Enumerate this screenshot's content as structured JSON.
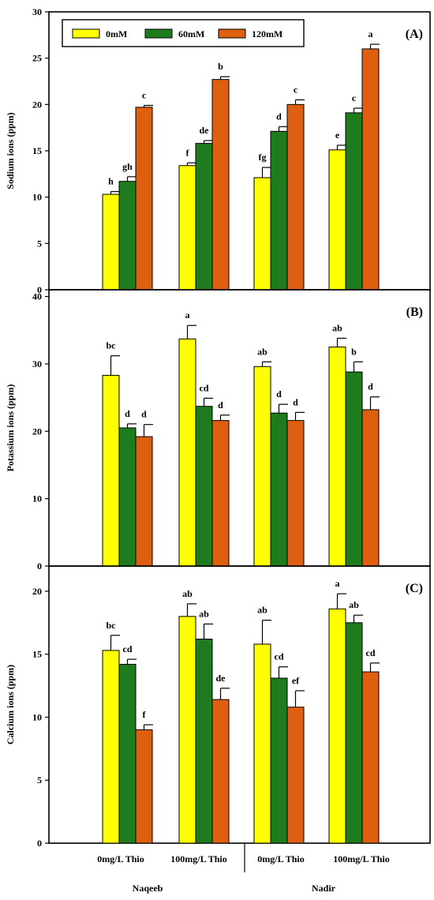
{
  "legend": [
    {
      "label": "0mM",
      "color": "#ffff00"
    },
    {
      "label": "60mM",
      "color": "#1e7b1e"
    },
    {
      "label": "120mM",
      "color": "#dd5f0f"
    }
  ],
  "x_groups": [
    "0mg/L Thio",
    "100mg/L Thio",
    "0mg/L Thio",
    "100mg/L Thio"
  ],
  "cultivars": [
    "Naqeeb",
    "Nadir"
  ],
  "chart_data": [
    {
      "type": "bar",
      "panel_label": "(A)",
      "ylabel": "Sodium ions (ppm)",
      "ylim": [
        0,
        30
      ],
      "yticks": [
        0,
        5,
        10,
        15,
        20,
        25,
        30
      ],
      "categories": [
        "0mg/L Thio",
        "100mg/L Thio",
        "0mg/L Thio",
        "100mg/L Thio"
      ],
      "series": [
        {
          "name": "0mM",
          "values": [
            10.3,
            13.4,
            12.1,
            15.1
          ],
          "errors": [
            0.3,
            0.3,
            1.1,
            0.5
          ],
          "labels": [
            "h",
            "f",
            "fg",
            "e"
          ]
        },
        {
          "name": "60mM",
          "values": [
            11.7,
            15.8,
            17.1,
            19.1
          ],
          "errors": [
            0.5,
            0.3,
            0.5,
            0.5
          ],
          "labels": [
            "gh",
            "de",
            "d",
            "c"
          ]
        },
        {
          "name": "120mM",
          "values": [
            19.7,
            22.7,
            20.0,
            26.0
          ],
          "errors": [
            0.2,
            0.3,
            0.5,
            0.5
          ],
          "labels": [
            "c",
            "b",
            "c",
            "a"
          ]
        }
      ],
      "legend_position": "top-left"
    },
    {
      "type": "bar",
      "panel_label": "(B)",
      "ylabel": "Potassium ions (ppm)",
      "ylim": [
        0,
        41
      ],
      "yticks": [
        0,
        10,
        20,
        30,
        40
      ],
      "categories": [
        "0mg/L Thio",
        "100mg/L Thio",
        "0mg/L Thio",
        "100mg/L Thio"
      ],
      "series": [
        {
          "name": "0mM",
          "values": [
            28.3,
            33.7,
            29.6,
            32.5
          ],
          "errors": [
            2.9,
            2.0,
            0.7,
            1.3
          ],
          "labels": [
            "bc",
            "a",
            "ab",
            "ab"
          ]
        },
        {
          "name": "60mM",
          "values": [
            20.5,
            23.7,
            22.7,
            28.8
          ],
          "errors": [
            0.6,
            1.2,
            1.3,
            1.5
          ],
          "labels": [
            "d",
            "cd",
            "d",
            "b"
          ]
        },
        {
          "name": "120mM",
          "values": [
            19.2,
            21.6,
            21.6,
            23.2
          ],
          "errors": [
            1.8,
            0.8,
            1.2,
            1.9
          ],
          "labels": [
            "d",
            "d",
            "d",
            "d"
          ]
        }
      ]
    },
    {
      "type": "bar",
      "panel_label": "(C)",
      "ylabel": "Calcium ions (ppm)",
      "ylim": [
        0,
        22
      ],
      "yticks": [
        0,
        5,
        10,
        15,
        20
      ],
      "categories": [
        "0mg/L Thio",
        "100mg/L Thio",
        "0mg/L Thio",
        "100mg/L Thio"
      ],
      "series": [
        {
          "name": "0mM",
          "values": [
            15.3,
            18.0,
            15.8,
            18.6
          ],
          "errors": [
            1.2,
            1.0,
            1.9,
            1.2
          ],
          "labels": [
            "bc",
            "ab",
            "ab",
            "a"
          ]
        },
        {
          "name": "60mM",
          "values": [
            14.2,
            16.2,
            13.1,
            17.5
          ],
          "errors": [
            0.4,
            1.2,
            0.9,
            0.6
          ],
          "labels": [
            "cd",
            "ab",
            "cd",
            "ab"
          ]
        },
        {
          "name": "120mM",
          "values": [
            9.0,
            11.4,
            10.8,
            13.6
          ],
          "errors": [
            0.4,
            0.9,
            1.3,
            0.7
          ],
          "labels": [
            "f",
            "de",
            "ef",
            "cd"
          ]
        }
      ]
    }
  ]
}
